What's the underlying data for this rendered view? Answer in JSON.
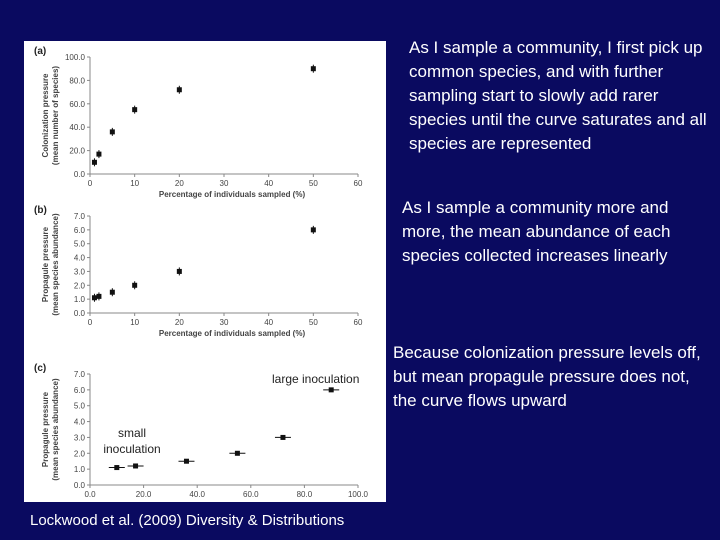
{
  "captions": {
    "first": "As I sample a community, I first pick up common species, and with further sampling start to slowly add rarer species until the curve saturates and all species are represented",
    "second": "As I sample a community more and more, the mean abundance of each species collected increases linearly",
    "third": "Because colonization pressure levels off, but mean propagule pressure does not, the curve flows upward"
  },
  "citation": "Lockwood et al. (2009) Diversity & Distributions",
  "chart_data": [
    {
      "type": "scatter",
      "panel": "(a)",
      "xlabel": "Percentage of individuals sampled (%)",
      "ylabel": "Colonization pressure (mean number of species)",
      "xlim": [
        0,
        60
      ],
      "ylim": [
        0,
        100
      ],
      "xticks": [
        "0",
        "10",
        "20",
        "30",
        "40",
        "50",
        "60"
      ],
      "yticks": [
        "0.0",
        "20.0",
        "40.0",
        "60.0",
        "80.0",
        "100.0"
      ],
      "x": [
        1,
        2,
        5,
        10,
        20,
        50
      ],
      "y": [
        10,
        17,
        36,
        55,
        72,
        90
      ]
    },
    {
      "type": "scatter",
      "panel": "(b)",
      "xlabel": "Percentage of individuals sampled (%)",
      "ylabel": "Propagule pressure (mean species abundance)",
      "xlim": [
        0,
        60
      ],
      "ylim": [
        0,
        7
      ],
      "xticks": [
        "0",
        "10",
        "20",
        "30",
        "40",
        "50",
        "60"
      ],
      "yticks": [
        "0.0",
        "1.0",
        "2.0",
        "3.0",
        "4.0",
        "5.0",
        "6.0",
        "7.0"
      ],
      "x": [
        1,
        2,
        5,
        10,
        20,
        50
      ],
      "y": [
        1.1,
        1.2,
        1.5,
        2.0,
        3.0,
        6.0
      ]
    },
    {
      "type": "scatter",
      "panel": "(c)",
      "xlabel": "Colonization pressure (mean number of species)",
      "ylabel": "Propagule pressure (mean species abundance)",
      "xlim": [
        0,
        100
      ],
      "ylim": [
        0,
        7
      ],
      "xticks": [
        "0.0",
        "20.0",
        "40.0",
        "60.0",
        "80.0",
        "100.0"
      ],
      "yticks": [
        "0.0",
        "1.0",
        "2.0",
        "3.0",
        "4.0",
        "5.0",
        "6.0",
        "7.0"
      ],
      "x": [
        10,
        17,
        36,
        55,
        72,
        90
      ],
      "y": [
        1.1,
        1.2,
        1.5,
        2.0,
        3.0,
        6.0
      ],
      "annotations": [
        "large inoculation",
        "small inoculation"
      ]
    }
  ]
}
